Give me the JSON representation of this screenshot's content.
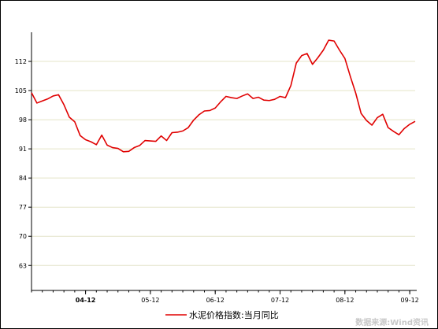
{
  "chart_data": {
    "type": "line",
    "title": "",
    "xlabel": "",
    "ylabel": "",
    "ylim": [
      57,
      119
    ],
    "yticks": [
      63,
      70,
      77,
      84,
      91,
      98,
      105,
      112
    ],
    "xticks": [
      {
        "label": "04-12",
        "x": 10,
        "bold": true
      },
      {
        "label": "05-12",
        "x": 22,
        "bold": false
      },
      {
        "label": "06-12",
        "x": 34,
        "bold": false
      },
      {
        "label": "07-12",
        "x": 46,
        "bold": false
      },
      {
        "label": "08-12",
        "x": 58,
        "bold": false
      },
      {
        "label": "09-12",
        "x": 70,
        "bold": false
      }
    ],
    "grid": true,
    "legend_position": "bottom",
    "series": [
      {
        "name": "水泥价格指数:当月同比",
        "color": "#e00000",
        "points": [
          [
            0,
            104.5
          ],
          [
            1,
            102
          ],
          [
            2,
            102.5
          ],
          [
            3,
            103
          ],
          [
            4,
            103.7
          ],
          [
            5,
            104
          ],
          [
            6,
            101.6
          ],
          [
            7,
            98.6
          ],
          [
            8,
            97.5
          ],
          [
            9,
            94.2
          ],
          [
            10,
            93.2
          ],
          [
            11,
            92.7
          ],
          [
            12,
            92
          ],
          [
            13,
            94.3
          ],
          [
            14,
            91.9
          ],
          [
            15,
            91.3
          ],
          [
            16,
            91.1
          ],
          [
            17,
            90.3
          ],
          [
            18,
            90.4
          ],
          [
            19,
            91.3
          ],
          [
            20,
            91.8
          ],
          [
            21,
            93
          ],
          [
            22,
            92.9
          ],
          [
            23,
            92.8
          ],
          [
            24,
            94.1
          ],
          [
            25,
            93
          ],
          [
            26,
            94.9
          ],
          [
            27,
            95
          ],
          [
            28,
            95.3
          ],
          [
            29,
            96.1
          ],
          [
            30,
            97.9
          ],
          [
            31,
            99.2
          ],
          [
            32,
            100.1
          ],
          [
            33,
            100.2
          ],
          [
            34,
            100.8
          ],
          [
            35,
            102.3
          ],
          [
            36,
            103.6
          ],
          [
            37,
            103.3
          ],
          [
            38,
            103.1
          ],
          [
            39,
            103.7
          ],
          [
            40,
            104.2
          ],
          [
            41,
            103.1
          ],
          [
            42,
            103.4
          ],
          [
            43,
            102.7
          ],
          [
            44,
            102.6
          ],
          [
            45,
            102.9
          ],
          [
            46,
            103.6
          ],
          [
            47,
            103.3
          ],
          [
            48,
            106.2
          ],
          [
            49,
            111.6
          ],
          [
            50,
            113.4
          ],
          [
            51,
            113.9
          ],
          [
            52,
            111.3
          ],
          [
            53,
            112.9
          ],
          [
            54,
            114.7
          ],
          [
            55,
            117.1
          ],
          [
            56,
            116.9
          ],
          [
            57,
            114.7
          ],
          [
            58,
            112.7
          ],
          [
            59,
            108.4
          ],
          [
            60,
            104.4
          ],
          [
            61,
            99.5
          ],
          [
            62,
            97.8
          ],
          [
            63,
            96.7
          ],
          [
            64,
            98.5
          ],
          [
            65,
            99.3
          ],
          [
            66,
            96.1
          ],
          [
            67,
            95.2
          ],
          [
            68,
            94.4
          ],
          [
            69,
            95.9
          ],
          [
            70,
            96.9
          ],
          [
            71,
            97.6
          ]
        ]
      }
    ]
  },
  "footer": {
    "source": "数据来源:Wind资讯"
  }
}
